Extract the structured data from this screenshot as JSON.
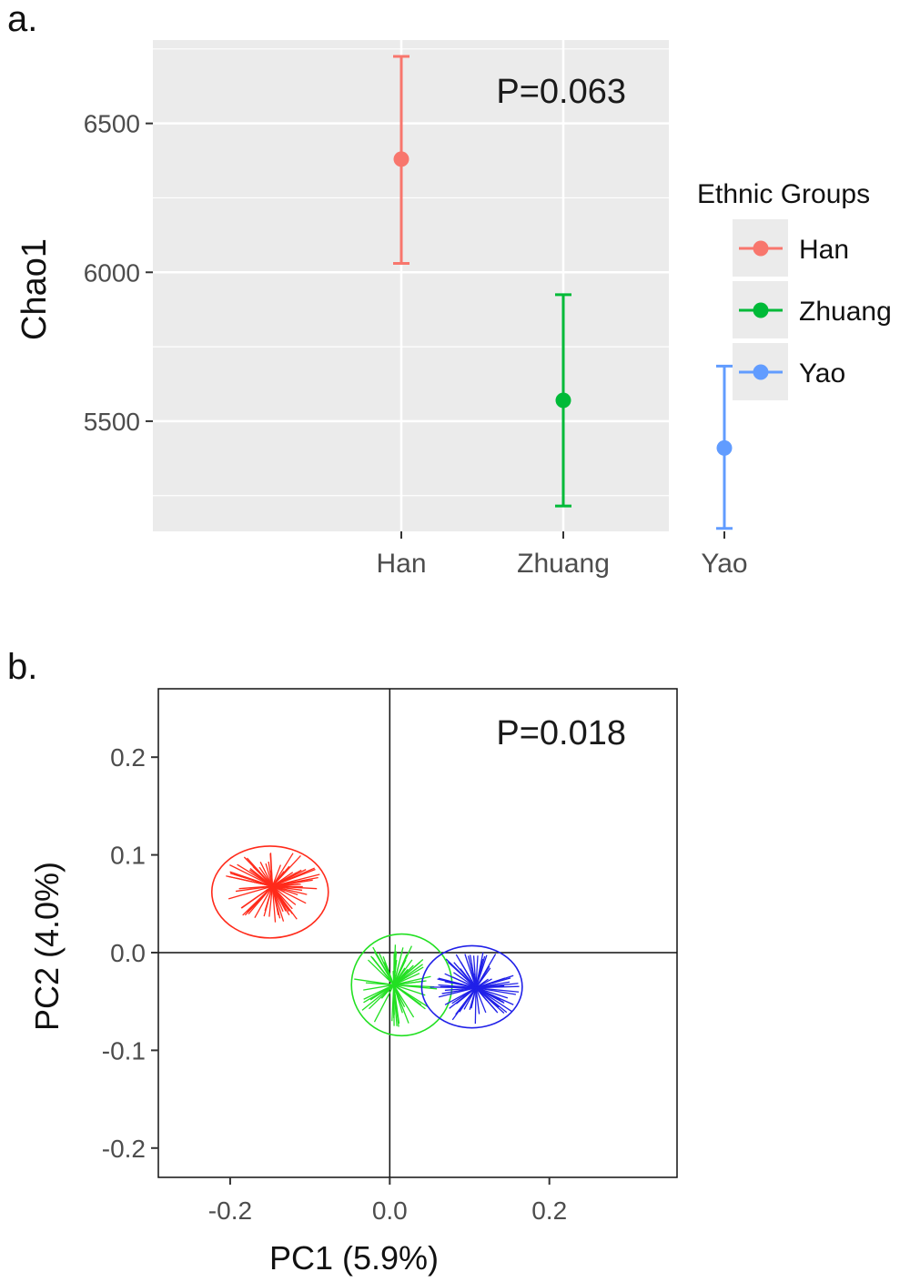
{
  "panel_a_label": "a.",
  "panel_b_label": "b.",
  "chart_data": [
    {
      "type": "errorbar",
      "panel": "a",
      "ylabel": "Chao1",
      "xlabel": "",
      "categories": [
        "Han",
        "Zhuang",
        "Yao"
      ],
      "means": [
        6380,
        5570,
        5410
      ],
      "lower": [
        6030,
        5215,
        5140
      ],
      "upper": [
        6725,
        5925,
        5685
      ],
      "colors": [
        "#F8766D",
        "#00BA38",
        "#619CFF"
      ],
      "ylim": [
        5130,
        6780
      ],
      "yticks": [
        5500,
        6000,
        6500
      ],
      "yminor": [
        5250,
        5750,
        6250,
        6750
      ],
      "annotation": "P=0.063",
      "legend_title": "Ethnic Groups",
      "legend": [
        "Han",
        "Zhuang",
        "Yao"
      ],
      "legend_position": "right"
    },
    {
      "type": "scatter",
      "panel": "b",
      "xlabel": "PC1 (5.9%)",
      "ylabel": "PC2 (4.0%)",
      "xlim": [
        -0.29,
        0.36
      ],
      "ylim": [
        -0.23,
        0.27
      ],
      "xticks": [
        -0.2,
        0.0,
        0.2
      ],
      "xticklabels": [
        "-0.2",
        "0.0",
        "0.2"
      ],
      "yticks": [
        -0.2,
        -0.1,
        0.0,
        0.1,
        0.2
      ],
      "yticklabels": [
        "-0.2",
        "-0.1",
        "0.0",
        "0.1",
        "0.2"
      ],
      "annotation": "P=0.018",
      "groups": [
        {
          "name": "Han",
          "color": "#FF2A1A",
          "centroid": [
            -0.147,
            0.068
          ],
          "ellipse_center": [
            -0.15,
            0.062
          ],
          "ellipse_radii": [
            0.073,
            0.047
          ],
          "spread": [
            0.06,
            0.035
          ],
          "n": 70,
          "seed": 11
        },
        {
          "name": "Zhuang",
          "color": "#22E022",
          "centroid": [
            0.005,
            -0.033
          ],
          "ellipse_center": [
            0.015,
            -0.033
          ],
          "ellipse_radii": [
            0.063,
            0.052
          ],
          "spread": [
            0.05,
            0.04
          ],
          "n": 60,
          "seed": 23
        },
        {
          "name": "Yao",
          "color": "#2020E8",
          "centroid": [
            0.108,
            -0.036
          ],
          "ellipse_center": [
            0.103,
            -0.035
          ],
          "ellipse_radii": [
            0.063,
            0.042
          ],
          "spread": [
            0.055,
            0.035
          ],
          "n": 70,
          "seed": 37
        }
      ]
    }
  ]
}
